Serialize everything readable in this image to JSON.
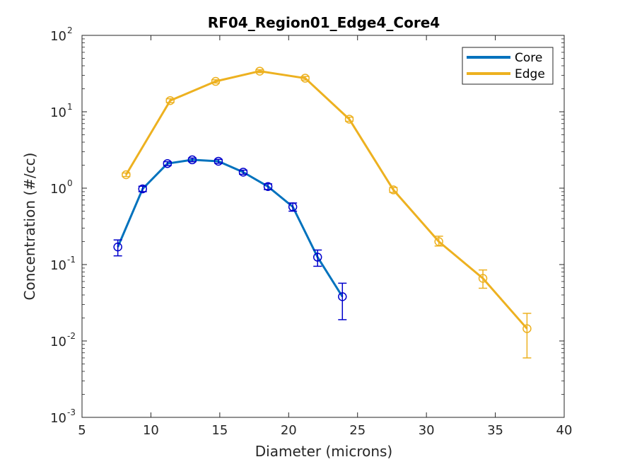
{
  "chart_data": {
    "type": "line",
    "title": "RF04_Region01_Edge4_Core4",
    "xlabel": "Diameter (microns)",
    "ylabel": "Concentration (#/cc)",
    "xlim": [
      5,
      40
    ],
    "ylim": [
      0.001,
      100
    ],
    "yscale": "log",
    "x_ticks": [
      5,
      10,
      15,
      20,
      25,
      30,
      35,
      40
    ],
    "y_ticks": [
      {
        "value": 0.001,
        "base": "10",
        "exp": "-3"
      },
      {
        "value": 0.01,
        "base": "10",
        "exp": "-2"
      },
      {
        "value": 0.1,
        "base": "10",
        "exp": "-1"
      },
      {
        "value": 1,
        "base": "10",
        "exp": "0"
      },
      {
        "value": 10,
        "base": "10",
        "exp": "1"
      },
      {
        "value": 100,
        "base": "10",
        "exp": "2"
      }
    ],
    "grid": false,
    "legend_position": "top-right",
    "series": [
      {
        "name": "Core",
        "color": "#0072BD",
        "marker_color": "#0000CC",
        "x": [
          7.6,
          9.4,
          11.2,
          13.0,
          14.9,
          16.7,
          18.5,
          20.3,
          22.1,
          23.9
        ],
        "y": [
          0.17,
          0.98,
          2.1,
          2.35,
          2.25,
          1.62,
          1.05,
          0.57,
          0.125,
          0.038
        ],
        "err_lower": [
          0.13,
          0.9,
          1.98,
          2.22,
          2.12,
          1.52,
          0.96,
          0.5,
          0.095,
          0.019
        ],
        "err_upper": [
          0.21,
          1.06,
          2.22,
          2.48,
          2.38,
          1.72,
          1.14,
          0.64,
          0.155,
          0.057
        ]
      },
      {
        "name": "Edge",
        "color": "#EDB120",
        "marker_color": "#EDB120",
        "x": [
          8.2,
          11.4,
          14.7,
          17.9,
          21.2,
          24.4,
          27.6,
          30.9,
          34.1,
          37.3
        ],
        "y": [
          1.5,
          14,
          25,
          34,
          27.5,
          8.0,
          0.95,
          0.2,
          0.066,
          0.0145
        ],
        "err_lower": [
          1.42,
          13.2,
          23.8,
          32.5,
          26.0,
          7.5,
          0.88,
          0.175,
          0.049,
          0.006
        ],
        "err_upper": [
          1.58,
          14.8,
          26.2,
          35.5,
          29.0,
          8.5,
          1.02,
          0.235,
          0.085,
          0.023
        ]
      }
    ]
  }
}
